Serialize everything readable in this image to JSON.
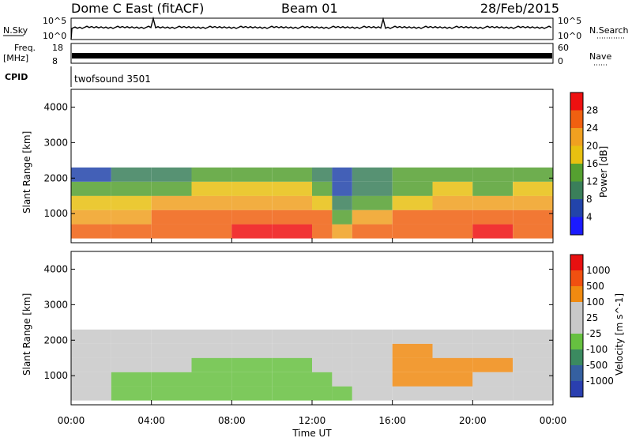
{
  "header": {
    "station": "Dome C East (fitACF)",
    "beam": "Beam 01",
    "date": "28/Feb/2015"
  },
  "aux_panels": {
    "nsky_label": "N.Sky",
    "nsky_ticks": [
      "10^5",
      "10^0"
    ],
    "nsearch_label": "N.Search",
    "nsearch_ticks": [
      "10^5",
      "10^0"
    ],
    "freq_label": "Freq.",
    "freq_unit": "[MHz]",
    "freq_ticks": [
      "18",
      "8"
    ],
    "nave_label": "Nave",
    "nave_ticks": [
      "60",
      "0"
    ],
    "cpid_label": "CPID",
    "cpid_value": "twofsound 3501"
  },
  "colors": {
    "power_scale": [
      "#1a1aff",
      "#2244aa",
      "#3a7f5a",
      "#55a030",
      "#e8c010",
      "#f0a020",
      "#f06010",
      "#ee1010"
    ],
    "velocity_scale": [
      "#2a3fb0",
      "#3560a0",
      "#3b8a60",
      "#66c040",
      "#c8c8c8",
      "#c8c8c8",
      "#f08a10",
      "#f05010",
      "#e81010"
    ]
  },
  "chart_data": [
    {
      "type": "heatmap",
      "name": "power-panel",
      "ylabel": "Slant Range [km]",
      "xlabel": "Time UT",
      "x_ticks": [
        "00:00",
        "04:00",
        "08:00",
        "12:00",
        "16:00",
        "20:00",
        "00:00"
      ],
      "y_ticks": [
        "1000",
        "2000",
        "3000",
        "4000"
      ],
      "ylim": [
        180,
        4500
      ],
      "colorbar_label": "Power [dB]",
      "colorbar_ticks": [
        "28",
        "24",
        "20",
        "16",
        "12",
        "8",
        "4"
      ],
      "colorbar_range": [
        0,
        32
      ],
      "x": [
        0,
        2,
        4,
        6,
        8,
        10,
        12,
        13,
        14,
        16,
        18,
        20,
        22,
        24
      ],
      "y": [
        500,
        900,
        1300,
        1700,
        2100
      ],
      "z": [
        [
          26,
          24,
          26,
          27,
          28,
          28,
          26,
          20,
          24,
          26,
          26,
          28,
          26,
          20
        ],
        [
          22,
          22,
          24,
          26,
          26,
          27,
          24,
          14,
          20,
          24,
          26,
          26,
          24,
          18
        ],
        [
          16,
          18,
          20,
          20,
          22,
          22,
          18,
          8,
          14,
          18,
          22,
          20,
          20,
          14
        ],
        [
          12,
          12,
          14,
          16,
          16,
          16,
          14,
          4,
          10,
          14,
          16,
          14,
          16,
          12
        ],
        [
          6,
          8,
          8,
          12,
          14,
          14,
          10,
          4,
          8,
          12,
          12,
          12,
          14,
          10
        ]
      ]
    },
    {
      "type": "heatmap",
      "name": "velocity-panel",
      "ylabel": "Slant Range [km]",
      "xlabel": "Time UT",
      "x_ticks": [
        "00:00",
        "04:00",
        "08:00",
        "12:00",
        "16:00",
        "20:00",
        "00:00"
      ],
      "y_ticks": [
        "1000",
        "2000",
        "3000",
        "4000"
      ],
      "ylim": [
        180,
        4500
      ],
      "colorbar_label": "Velocity [m s^-1]",
      "colorbar_ticks": [
        "1000",
        "500",
        "100",
        "25",
        "-25",
        "-100",
        "-500",
        "-1000"
      ],
      "colorbar_range": [
        -1200,
        1200
      ],
      "x": [
        0,
        2,
        4,
        6,
        8,
        10,
        12,
        13,
        14,
        16,
        18,
        20,
        22,
        24
      ],
      "y": [
        500,
        900,
        1300,
        1700,
        2100
      ],
      "z": [
        [
          150,
          -300,
          -300,
          -400,
          -400,
          -400,
          -300,
          -200,
          -100,
          300,
          300,
          200,
          100,
          150
        ],
        [
          100,
          -200,
          -250,
          -300,
          -350,
          -300,
          -250,
          -100,
          50,
          500,
          400,
          300,
          150,
          100
        ],
        [
          100,
          50,
          -100,
          -200,
          -200,
          -150,
          -100,
          0,
          100,
          600,
          500,
          400,
          200,
          150
        ],
        [
          0,
          0,
          0,
          0,
          0,
          0,
          0,
          0,
          50,
          400,
          300,
          200,
          100,
          50
        ],
        [
          0,
          0,
          0,
          0,
          0,
          0,
          0,
          0,
          0,
          100,
          50,
          50,
          0,
          0
        ]
      ]
    }
  ]
}
